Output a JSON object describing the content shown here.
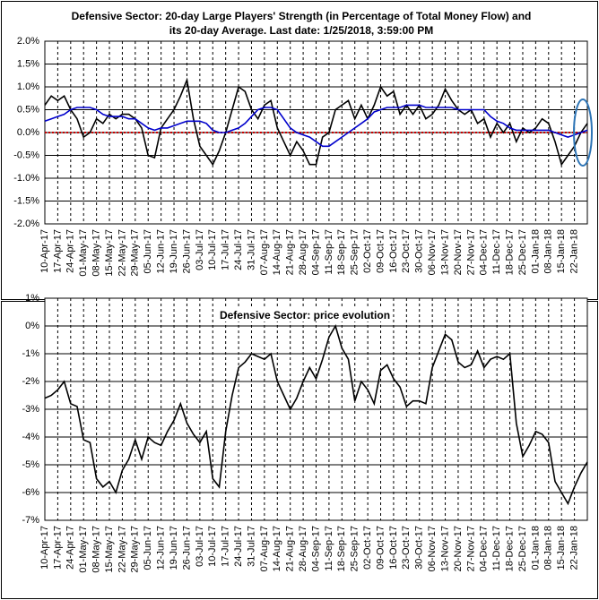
{
  "chart_data": [
    {
      "type": "line",
      "title": "Defensive Sector: 20-day Large Players' Strength (in Percentage of Total Money Flow) and its 20-day Average. Last date: 1/25/2018, 3:59:00 PM",
      "categories": [
        "10-Apr-17",
        null,
        "17-Apr-17",
        null,
        "24-Apr-17",
        null,
        "01-May-17",
        null,
        "08-May-17",
        null,
        "15-May-17",
        null,
        "22-May-17",
        null,
        "29-May-17",
        null,
        "05-Jun-17",
        null,
        "12-Jun-17",
        null,
        "19-Jun-17",
        null,
        "26-Jun-17",
        null,
        "03-Jul-17",
        null,
        "10-Jul-17",
        null,
        "17-Jul-17",
        null,
        "24-Jul-17",
        null,
        "31-Jul-17",
        null,
        "07-Aug-17",
        null,
        "14-Aug-17",
        null,
        "21-Aug-17",
        null,
        "28-Aug-17",
        null,
        "04-Sep-17",
        null,
        "11-Sep-17",
        null,
        "18-Sep-17",
        null,
        "25-Sep-17",
        null,
        "02-Oct-17",
        null,
        "09-Oct-17",
        null,
        "16-Oct-17",
        null,
        "23-Oct-17",
        null,
        "30-Oct-17",
        null,
        "06-Nov-17",
        null,
        "13-Nov-17",
        null,
        "20-Nov-17",
        null,
        "27-Nov-17",
        null,
        "04-Dec-17",
        null,
        "11-Dec-17",
        null,
        "18-Dec-17",
        null,
        "25-Dec-17",
        null,
        "01-Jan-18",
        null,
        "08-Jan-18",
        null,
        "15-Jan-18",
        null,
        "22-Jan-18",
        null,
        null
      ],
      "series": [
        {
          "color": "#000000",
          "values": [
            0.6,
            0.8,
            0.7,
            0.8,
            0.5,
            0.3,
            -0.1,
            0.0,
            0.3,
            0.2,
            0.4,
            0.3,
            0.4,
            0.4,
            0.3,
            0.1,
            -0.5,
            -0.55,
            0.1,
            0.3,
            0.5,
            0.8,
            1.15,
            0.3,
            -0.3,
            -0.5,
            -0.7,
            -0.4,
            0.0,
            0.5,
            1.0,
            0.9,
            0.5,
            0.3,
            0.6,
            0.7,
            0.1,
            -0.2,
            -0.5,
            -0.2,
            -0.4,
            -0.7,
            -0.7,
            -0.1,
            0.0,
            0.5,
            0.6,
            0.7,
            0.3,
            0.6,
            0.3,
            0.6,
            1.0,
            0.8,
            0.9,
            0.4,
            0.6,
            0.4,
            0.6,
            0.3,
            0.4,
            0.6,
            0.95,
            0.7,
            0.5,
            0.4,
            0.5,
            0.2,
            0.3,
            -0.1,
            0.2,
            0.0,
            0.2,
            -0.2,
            0.1,
            0.0,
            0.1,
            0.3,
            0.2,
            -0.2,
            -0.7,
            -0.5,
            -0.3,
            0.0,
            0.2
          ]
        },
        {
          "color": "#0000cc",
          "values": [
            0.25,
            0.3,
            0.35,
            0.4,
            0.5,
            0.55,
            0.55,
            0.55,
            0.5,
            0.4,
            0.35,
            0.35,
            0.35,
            0.3,
            0.3,
            0.2,
            0.1,
            0.05,
            0.1,
            0.1,
            0.15,
            0.2,
            0.25,
            0.25,
            0.25,
            0.2,
            0.05,
            0.0,
            0.0,
            0.05,
            0.1,
            0.2,
            0.35,
            0.5,
            0.55,
            0.55,
            0.5,
            0.3,
            0.1,
            0.0,
            -0.05,
            -0.1,
            -0.2,
            -0.3,
            -0.3,
            -0.2,
            -0.1,
            0.0,
            0.1,
            0.2,
            0.3,
            0.45,
            0.5,
            0.55,
            0.55,
            0.55,
            0.6,
            0.6,
            0.6,
            0.55,
            0.55,
            0.55,
            0.55,
            0.55,
            0.5,
            0.5,
            0.5,
            0.5,
            0.5,
            0.35,
            0.25,
            0.2,
            0.1,
            0.05,
            0.05,
            0.05,
            0.05,
            0.05,
            0.05,
            0.0,
            -0.05,
            -0.1,
            -0.05,
            0.0,
            0.05
          ]
        }
      ],
      "ylim": [
        -2,
        2
      ],
      "yticks": [
        {
          "value": 2,
          "label": "2.0%"
        },
        {
          "value": 1.5,
          "label": "1.5%"
        },
        {
          "value": 1,
          "label": "1.0%"
        },
        {
          "value": 0.5,
          "label": "0.5%"
        },
        {
          "value": 0,
          "label": "0.0%"
        },
        {
          "value": -0.5,
          "label": "-0.5%"
        },
        {
          "value": -1,
          "label": "-1.0%"
        },
        {
          "value": -1.5,
          "label": "-1.5%"
        },
        {
          "value": -2,
          "label": "-2.0%"
        }
      ],
      "grid": true,
      "zero_line_color": "#cc0000"
    },
    {
      "type": "line",
      "title": "Defensive Sector: price evolution",
      "categories": [
        "10-Apr-17",
        null,
        "17-Apr-17",
        null,
        "24-Apr-17",
        null,
        "01-May-17",
        null,
        "08-May-17",
        null,
        "15-May-17",
        null,
        "22-May-17",
        null,
        "29-May-17",
        null,
        "05-Jun-17",
        null,
        "12-Jun-17",
        null,
        "19-Jun-17",
        null,
        "26-Jun-17",
        null,
        "03-Jul-17",
        null,
        "10-Jul-17",
        null,
        "17-Jul-17",
        null,
        "24-Jul-17",
        null,
        "31-Jul-17",
        null,
        "07-Aug-17",
        null,
        "14-Aug-17",
        null,
        "21-Aug-17",
        null,
        "28-Aug-17",
        null,
        "04-Sep-17",
        null,
        "11-Sep-17",
        null,
        "18-Sep-17",
        null,
        "25-Sep-17",
        null,
        "02-Oct-17",
        null,
        "09-Oct-17",
        null,
        "16-Oct-17",
        null,
        "23-Oct-17",
        null,
        "30-Oct-17",
        null,
        "06-Nov-17",
        null,
        "13-Nov-17",
        null,
        "20-Nov-17",
        null,
        "27-Nov-17",
        null,
        "04-Dec-17",
        null,
        "11-Dec-17",
        null,
        "18-Dec-17",
        null,
        "25-Dec-17",
        null,
        "01-Jan-18",
        null,
        "08-Jan-18",
        null,
        "15-Jan-18",
        null,
        "22-Jan-18",
        null,
        null
      ],
      "series": [
        {
          "color": "#000000",
          "values": [
            -2.6,
            -2.5,
            -2.3,
            -2.0,
            -2.8,
            -2.9,
            -4.1,
            -4.2,
            -5.5,
            -5.8,
            -5.6,
            -6.0,
            -5.2,
            -4.8,
            -4.1,
            -4.8,
            -4.0,
            -4.2,
            -4.3,
            -3.8,
            -3.4,
            -2.8,
            -3.5,
            -3.9,
            -4.2,
            -3.8,
            -5.5,
            -5.8,
            -3.8,
            -2.5,
            -1.5,
            -1.3,
            -1.0,
            -1.1,
            -1.2,
            -1.0,
            -2.0,
            -2.5,
            -3.0,
            -2.6,
            -2.0,
            -1.5,
            -1.9,
            -1.2,
            -0.4,
            0.0,
            -0.8,
            -1.2,
            -2.7,
            -2.0,
            -2.3,
            -2.8,
            -1.6,
            -1.4,
            -1.9,
            -2.2,
            -2.9,
            -2.7,
            -2.7,
            -2.8,
            -1.5,
            -0.9,
            -0.3,
            -0.5,
            -1.3,
            -1.5,
            -1.4,
            -0.9,
            -1.5,
            -1.2,
            -1.1,
            -1.2,
            -1.0,
            -3.5,
            -4.7,
            -4.3,
            -3.8,
            -3.9,
            -4.2,
            -5.6,
            -6.0,
            -6.4,
            -5.8,
            -5.3,
            -4.9
          ]
        }
      ],
      "ylim": [
        -7,
        1
      ],
      "yticks": [
        {
          "value": 1,
          "label": "1%"
        },
        {
          "value": 0,
          "label": "0%"
        },
        {
          "value": -1,
          "label": "-1%"
        },
        {
          "value": -2,
          "label": "-2%"
        },
        {
          "value": -3,
          "label": "-3%"
        },
        {
          "value": -4,
          "label": "-4%"
        },
        {
          "value": -5,
          "label": "-5%"
        },
        {
          "value": -6,
          "label": "-6%"
        },
        {
          "value": -7,
          "label": "-7%"
        }
      ],
      "grid": true
    }
  ]
}
